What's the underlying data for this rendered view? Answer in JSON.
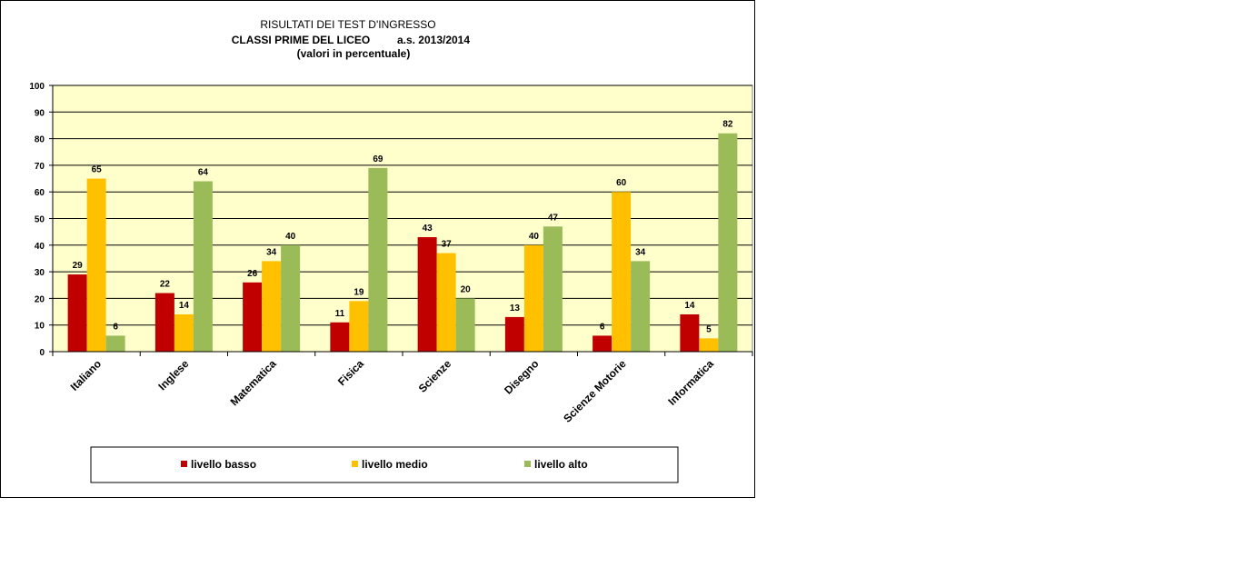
{
  "chart_data": {
    "type": "bar",
    "title": "RISULTATI DEI TEST D'INGRESSO",
    "subtitle_left": "CLASSI PRIME DEL LICEO",
    "subtitle_right": "a.s. 2013/2014",
    "subtitle_note": "(valori in percentuale)",
    "categories": [
      "Italiano",
      "Inglese",
      "Matematica",
      "Fisica",
      "Scienze",
      "Disegno",
      "Scienze Motorie",
      "Informatica"
    ],
    "series": [
      {
        "name": "livello basso",
        "color": "#c00000",
        "values": [
          29,
          22,
          26,
          11,
          43,
          13,
          6,
          14
        ]
      },
      {
        "name": "livello medio",
        "color": "#ffc000",
        "values": [
          65,
          14,
          34,
          19,
          37,
          40,
          60,
          5
        ]
      },
      {
        "name": "livello alto",
        "color": "#9bbb59",
        "values": [
          6,
          64,
          40,
          69,
          20,
          47,
          34,
          82
        ]
      }
    ],
    "ylim": [
      0,
      100
    ],
    "yticks": [
      "0",
      "10",
      "20",
      "30",
      "40",
      "50",
      "60",
      "70",
      "80",
      "90",
      "100"
    ],
    "xlabel": "",
    "ylabel": "",
    "grid": true,
    "plot_background": "#ffffcc",
    "legend_position": "bottom"
  }
}
